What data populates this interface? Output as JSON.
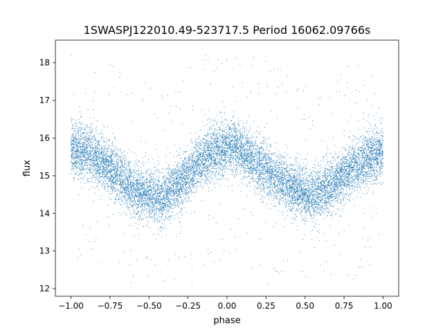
{
  "chart_data": {
    "type": "scatter",
    "title": "1SWASPJ122010.49-523717.5 Period 16062.09766s",
    "xlabel": "phase",
    "ylabel": "flux",
    "xlim": [
      -1.1,
      1.1
    ],
    "ylim": [
      11.8,
      18.6
    ],
    "xticks": [
      -1.0,
      -0.75,
      -0.5,
      -0.25,
      0.0,
      0.25,
      0.5,
      0.75,
      1.0
    ],
    "xtick_labels": [
      "−1.00",
      "−0.75",
      "−0.50",
      "−0.25",
      "0.00",
      "0.25",
      "0.50",
      "0.75",
      "1.00"
    ],
    "yticks": [
      12,
      13,
      14,
      15,
      16,
      17,
      18
    ],
    "ytick_labels": [
      "12",
      "13",
      "14",
      "15",
      "16",
      "17",
      "18"
    ],
    "grid": false,
    "legend": "none",
    "marker_color": "#1f77b4",
    "series": [
      {
        "x": [
          -1.0,
          -0.9,
          -0.8,
          -0.7,
          -0.6,
          -0.5,
          -0.45,
          -0.4,
          -0.3,
          -0.2,
          -0.1,
          0.0,
          0.05,
          0.1,
          0.2,
          0.3,
          0.4,
          0.5,
          0.55,
          0.6,
          0.7,
          0.8,
          0.9,
          1.0
        ],
        "y": [
          15.7,
          15.65,
          15.35,
          15.0,
          14.65,
          14.45,
          14.4,
          14.45,
          14.85,
          15.25,
          15.6,
          15.8,
          15.8,
          15.6,
          15.3,
          15.0,
          14.7,
          14.5,
          14.45,
          14.55,
          14.85,
          15.2,
          15.45,
          15.65
        ],
        "scatter_sd": 0.35,
        "approx_point_count": 12000
      }
    ]
  }
}
